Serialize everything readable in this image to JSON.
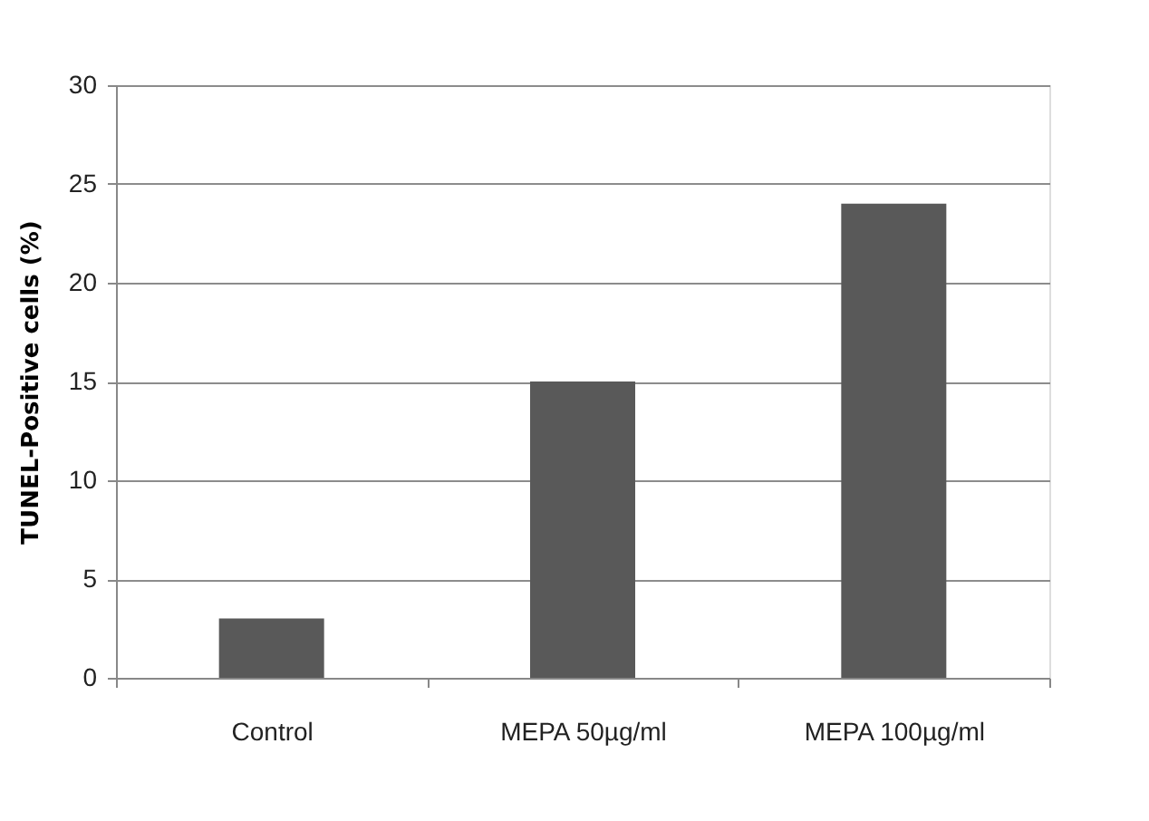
{
  "chart_data": {
    "type": "bar",
    "ylabel": "TUNEL-Positive cells (%)",
    "categories": [
      "Control",
      "MEPA 50µg/ml",
      "MEPA 100µg/ml"
    ],
    "values": [
      3,
      15,
      24
    ],
    "color": "#595959",
    "ylim": [
      0,
      30
    ],
    "yticks": [
      0,
      5,
      10,
      15,
      20,
      25,
      30
    ],
    "grid": "y"
  }
}
